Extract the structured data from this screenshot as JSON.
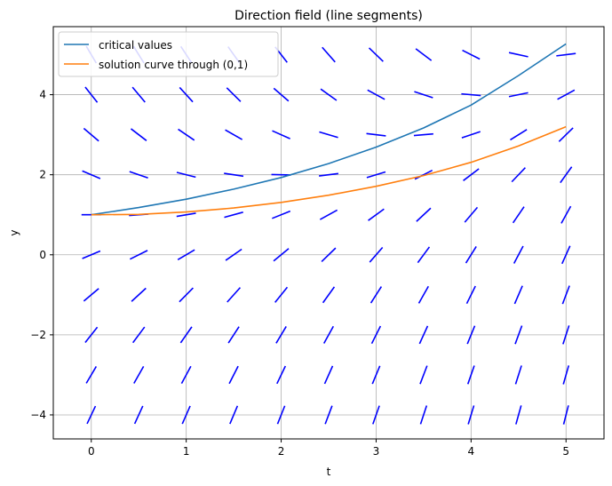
{
  "chart_data": {
    "type": "line",
    "title": "Direction field (line segments)",
    "xlabel": "t",
    "ylabel": "y",
    "xlim": [
      -0.4,
      5.4
    ],
    "ylim": [
      -4.6,
      5.7
    ],
    "xticks": [
      0,
      1,
      2,
      3,
      4,
      5
    ],
    "yticks": [
      -4,
      -2,
      0,
      2,
      4
    ],
    "xtick_labels": [
      "0",
      "1",
      "2",
      "3",
      "4",
      "5"
    ],
    "ytick_labels": [
      "−4",
      "−2",
      "0",
      "2",
      "4"
    ],
    "grid": true,
    "legend_position": "upper-left",
    "series": [
      {
        "name": "critical values",
        "color": "#1f77b4",
        "x": [
          0,
          0.5,
          1,
          1.5,
          2,
          2.5,
          3,
          3.5,
          4,
          4.5,
          5
        ],
        "y": [
          1.0,
          1.18,
          1.39,
          1.64,
          1.93,
          2.28,
          2.69,
          3.17,
          3.74,
          4.48,
          5.27
        ]
      },
      {
        "name": "solution curve through (0,1)",
        "color": "#ff7f0e",
        "x": [
          0,
          0.5,
          1,
          1.5,
          2,
          2.5,
          3,
          3.5,
          4,
          4.5,
          5
        ],
        "y": [
          1.0,
          1.01,
          1.07,
          1.17,
          1.31,
          1.49,
          1.71,
          1.98,
          2.31,
          2.72,
          3.2
        ]
      }
    ],
    "direction_field": {
      "color": "#0000ff",
      "t_values": [
        0,
        0.5,
        1,
        1.5,
        2,
        2.5,
        3,
        3.5,
        4,
        4.5,
        5
      ],
      "y_values": [
        -4,
        -3,
        -2,
        -1,
        0,
        1,
        2,
        3,
        4,
        5
      ],
      "slope_rule": "dy/dt = e^(t/3) - y"
    }
  }
}
